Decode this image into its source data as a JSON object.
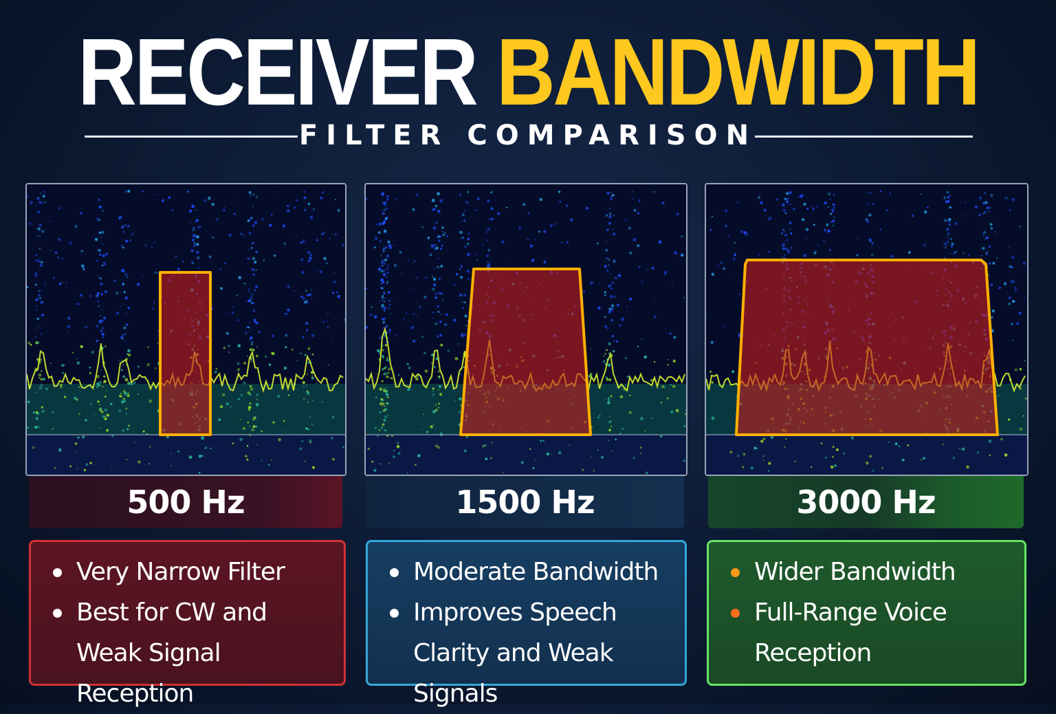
{
  "title": {
    "part1": "RECEIVER",
    "part2": "BANDWIDTH"
  },
  "subtitle": "FILTER COMPARISON",
  "colors": {
    "title_accent": "#FFC81E",
    "filter_outline": "#FFB000",
    "filter_fill": "#C81E1E"
  },
  "panels": [
    {
      "bandwidth_label": "500 Hz",
      "theme": "red",
      "border_color": "#D03236",
      "bullets": [
        "Very Narrow Filter",
        "Best for CW and",
        "Weak Signal Reception"
      ],
      "bullet_icon": "white-dot-icon"
    },
    {
      "bandwidth_label": "1500 Hz",
      "theme": "blue",
      "border_color": "#35A8D8",
      "bullets": [
        "Moderate Bandwidth",
        "Improves Speech",
        "Clarity and Weak Signals"
      ],
      "bullet_icon": "white-dot-icon"
    },
    {
      "bandwidth_label": "3000 Hz",
      "theme": "green",
      "border_color": "#66E466",
      "bullets": [
        "Wider Bandwidth",
        "Full-Range Voice",
        "Reception"
      ],
      "bullet_icon": "orange-dot-icon"
    }
  ]
}
